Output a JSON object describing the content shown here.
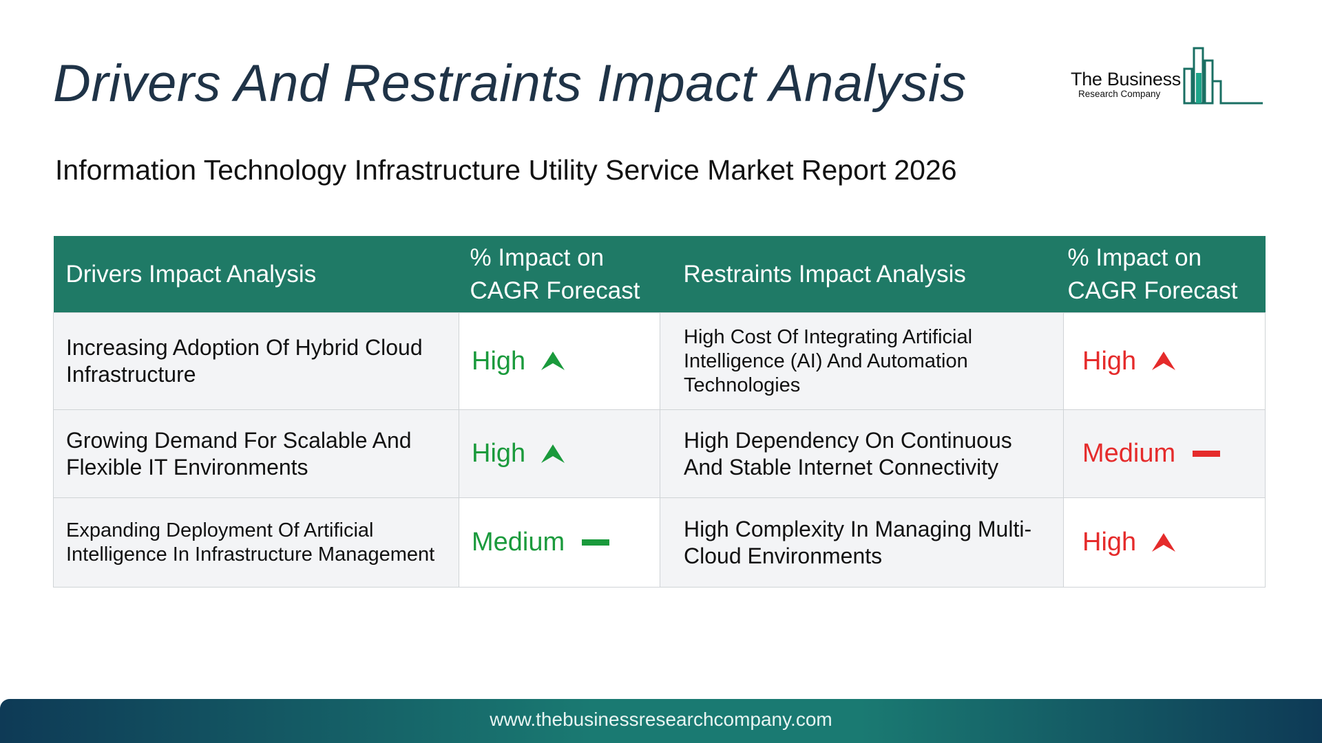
{
  "page": {
    "title": "Drivers And Restraints Impact Analysis",
    "subtitle": "Information Technology Infrastructure Utility Service Market Report 2026"
  },
  "logo": {
    "name": "The Business",
    "tagline": "Research Company"
  },
  "table": {
    "headers": {
      "drivers": "Drivers Impact Analysis",
      "drivers_impact": "% Impact on CAGR Forecast",
      "restraints": "Restraints Impact Analysis",
      "restraints_impact": "% Impact on CAGR Forecast"
    },
    "rows": [
      {
        "driver": "Increasing Adoption Of Hybrid Cloud Infrastructure",
        "driver_impact": "High",
        "driver_icon": "up-arrow-icon",
        "restraint": "High Cost Of Integrating Artificial Intelligence (AI) And Automation Technologies",
        "restraint_impact": "High",
        "restraint_icon": "up-arrow-icon"
      },
      {
        "driver": "Growing Demand For Scalable And Flexible IT Environments",
        "driver_impact": "High",
        "driver_icon": "up-arrow-icon",
        "restraint": "High Dependency On Continuous And Stable Internet Connectivity",
        "restraint_impact": "Medium",
        "restraint_icon": "dash-icon"
      },
      {
        "driver": "Expanding Deployment Of Artificial Intelligence In Infrastructure Management",
        "driver_impact": "Medium",
        "driver_icon": "dash-icon",
        "restraint": "High Complexity In Managing Multi-Cloud Environments",
        "restraint_impact": "High",
        "restraint_icon": "up-arrow-icon"
      }
    ]
  },
  "colors": {
    "header_bg": "#1f7a66",
    "driver_impact": "#1a9a3c",
    "restraint_impact": "#e52b2b",
    "title_text": "#1f3347"
  },
  "footer": {
    "url": "www.thebusinessresearchcompany.com"
  }
}
